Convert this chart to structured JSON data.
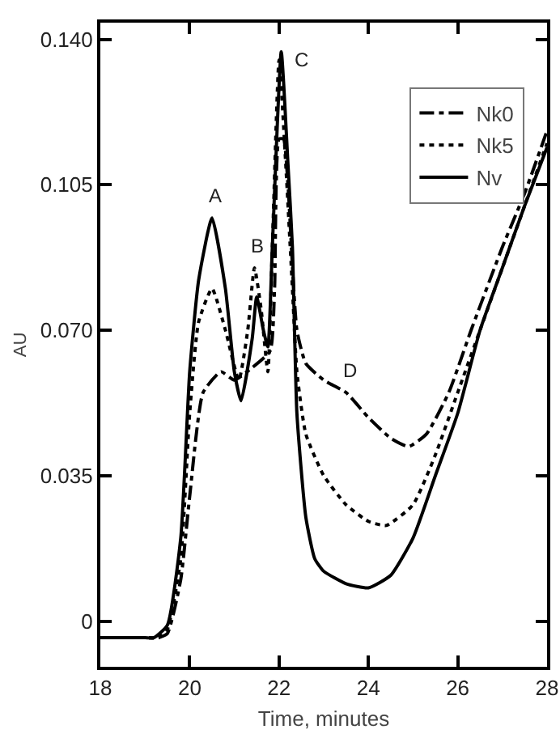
{
  "chart_data": {
    "type": "line",
    "xlabel": "Time, minutes",
    "ylabel": "AU",
    "xlim": [
      18,
      28
    ],
    "xticks": [
      18,
      20,
      22,
      24,
      26,
      28
    ],
    "ylim": [
      -0.011,
      0.144
    ],
    "yticks": [
      0,
      {
        "value": 0.035,
        "label": "0.035"
      },
      {
        "value": 0.07,
        "label": "0.070"
      },
      {
        "value": 0.105,
        "label": "0.105"
      },
      {
        "value": 0.14,
        "label": "0.140"
      }
    ],
    "grid": false,
    "legend": "top right",
    "marker": "none",
    "annotations": [
      {
        "text": "A",
        "x": 20.5,
        "y": 0.097
      },
      {
        "text": "B",
        "x": 21.45,
        "y": 0.085
      },
      {
        "text": "C",
        "x": 22.05,
        "y": 0.137
      },
      {
        "text": "D",
        "x": 23.5,
        "y": 0.055
      }
    ],
    "series": [
      {
        "name": "Nk0",
        "color": "#000000",
        "line_style": "dashdot",
        "x": [
          18,
          19,
          19.3,
          19.5,
          19.8,
          20,
          20.3,
          20.7,
          21,
          21.4,
          21.8,
          21.9,
          22,
          22.1,
          22.2,
          22.4,
          22.6,
          23,
          23.5,
          24,
          24.5,
          24.9,
          25.3,
          25.8,
          26.3,
          27,
          27.5,
          28
        ],
        "values": [
          -0.004,
          -0.004,
          -0.004,
          -0.003,
          0.01,
          0.03,
          0.055,
          0.06,
          0.058,
          0.061,
          0.065,
          0.08,
          0.116,
          0.116,
          0.105,
          0.07,
          0.062,
          0.058,
          0.055,
          0.049,
          0.044,
          0.042,
          0.045,
          0.055,
          0.07,
          0.09,
          0.103,
          0.118
        ]
      },
      {
        "name": "Nk5",
        "color": "#000000",
        "line_style": "dotted",
        "x": [
          18,
          19,
          19.3,
          19.5,
          19.8,
          20,
          20.2,
          20.5,
          20.8,
          21.1,
          21.3,
          21.45,
          21.6,
          21.75,
          21.85,
          22,
          22.15,
          22.3,
          22.4,
          22.6,
          23,
          23.5,
          24,
          24.4,
          25,
          25.5,
          26,
          26.5,
          27,
          27.5,
          28
        ],
        "values": [
          -0.004,
          -0.004,
          -0.004,
          -0.002,
          0.015,
          0.05,
          0.072,
          0.08,
          0.07,
          0.058,
          0.07,
          0.085,
          0.075,
          0.06,
          0.09,
          0.135,
          0.11,
          0.08,
          0.06,
          0.045,
          0.035,
          0.028,
          0.024,
          0.023,
          0.028,
          0.04,
          0.055,
          0.07,
          0.085,
          0.1,
          0.115
        ]
      },
      {
        "name": "Nv",
        "color": "#000000",
        "line_style": "solid",
        "x": [
          18,
          19,
          19.2,
          19.5,
          19.8,
          20,
          20.2,
          20.5,
          20.8,
          21,
          21.15,
          21.4,
          21.5,
          21.65,
          21.75,
          21.85,
          22.05,
          22.2,
          22.3,
          22.4,
          22.6,
          22.8,
          23,
          23.5,
          24,
          24.5,
          25,
          25.5,
          26,
          26.5,
          27,
          27.5,
          28
        ],
        "values": [
          -0.004,
          -0.004,
          -0.004,
          -0.001,
          0.02,
          0.06,
          0.082,
          0.097,
          0.08,
          0.06,
          0.053,
          0.068,
          0.078,
          0.07,
          0.066,
          0.09,
          0.137,
          0.11,
          0.09,
          0.05,
          0.025,
          0.015,
          0.012,
          0.009,
          0.008,
          0.011,
          0.02,
          0.035,
          0.05,
          0.07,
          0.085,
          0.1,
          0.114
        ]
      }
    ]
  }
}
